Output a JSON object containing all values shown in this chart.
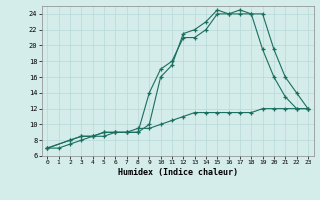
{
  "xlabel": "Humidex (Indice chaleur)",
  "background_color": "#d4ecea",
  "grid_color": "#b8d8d8",
  "line_color": "#1a6e5e",
  "xlim": [
    -0.5,
    23.5
  ],
  "ylim": [
    6,
    25
  ],
  "xticks": [
    0,
    1,
    2,
    3,
    4,
    5,
    6,
    7,
    8,
    9,
    10,
    11,
    12,
    13,
    14,
    15,
    16,
    17,
    18,
    19,
    20,
    21,
    22,
    23
  ],
  "yticks": [
    6,
    8,
    10,
    12,
    14,
    16,
    18,
    20,
    22,
    24
  ],
  "line1_x": [
    0,
    1,
    2,
    3,
    4,
    5,
    6,
    7,
    8,
    9,
    10,
    11,
    12,
    13,
    14,
    15,
    16,
    17,
    18,
    19,
    20,
    21,
    22,
    23
  ],
  "line1_y": [
    7,
    7,
    7.5,
    8,
    8.5,
    8.5,
    9,
    9,
    9.5,
    9.5,
    10,
    10.5,
    11,
    11.5,
    11.5,
    11.5,
    11.5,
    11.5,
    11.5,
    12,
    12,
    12,
    12,
    12
  ],
  "line2_x": [
    0,
    2,
    3,
    4,
    5,
    6,
    7,
    8,
    9,
    10,
    11,
    12,
    13,
    14,
    15,
    16,
    17,
    18,
    19,
    20,
    21,
    22,
    23
  ],
  "line2_y": [
    7,
    8,
    8.5,
    8.5,
    9,
    9,
    9,
    9,
    14,
    17,
    18,
    21,
    21,
    22,
    24,
    24,
    24,
    24,
    19.5,
    16,
    13.5,
    12,
    12
  ],
  "line3_x": [
    0,
    2,
    3,
    4,
    5,
    6,
    7,
    8,
    9,
    10,
    11,
    12,
    13,
    14,
    15,
    16,
    17,
    18,
    19,
    20,
    21,
    22,
    23
  ],
  "line3_y": [
    7,
    8,
    8.5,
    8.5,
    9,
    9,
    9,
    9,
    10,
    16,
    17.5,
    21.5,
    22,
    23,
    24.5,
    24,
    24.5,
    24,
    24,
    19.5,
    16,
    14,
    12
  ]
}
